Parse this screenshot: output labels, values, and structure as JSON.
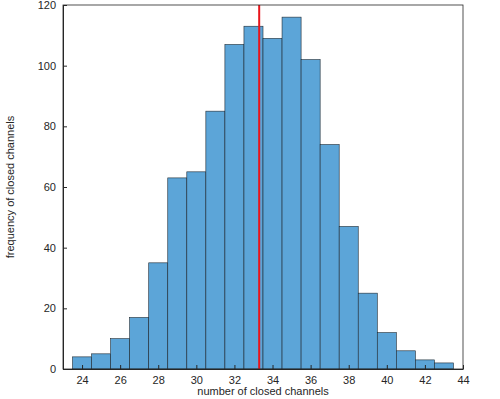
{
  "chart_data": {
    "type": "histogram",
    "x_label": "number of closed channels",
    "y_label": "frequency of closed channels",
    "bins": [
      23.5,
      24.5,
      25.5,
      26.5,
      27.5,
      28.5,
      29.5,
      30.5,
      31.5,
      32.5,
      33.5,
      34.5,
      35.5,
      36.5,
      37.5,
      38.5,
      39.5,
      40.5,
      41.5,
      42.5,
      43.5
    ],
    "values": [
      4,
      5,
      10,
      17,
      35,
      63,
      65,
      85,
      107,
      113,
      109,
      116,
      102,
      74,
      47,
      25,
      12,
      6,
      3,
      2
    ],
    "color": "#5ca5d8",
    "mean": 33.3,
    "xlim": [
      23,
      44
    ],
    "xticks": [
      24,
      26,
      28,
      30,
      32,
      34,
      36,
      38,
      40,
      42,
      44
    ],
    "ylim": [
      0,
      120
    ],
    "yticks": [
      0,
      20,
      40,
      60,
      80,
      100,
      120
    ],
    "grid": false
  }
}
